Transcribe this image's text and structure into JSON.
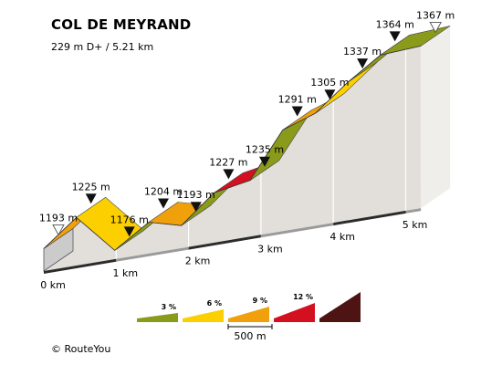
{
  "header": {
    "title": "COL DE MEYRAND",
    "subtitle": "229 m D+ / 5.21 km"
  },
  "footer": {
    "credit": "© RouteYou"
  },
  "colors": {
    "grade_3": "#8a9a1b",
    "grade_6": "#fccf00",
    "grade_9": "#f0a00a",
    "grade_12": "#d31020",
    "grade_max": "#4e1414",
    "wall_light": "#e2dfdb",
    "wall_dark": "#cbcbcb",
    "marker": "#111111"
  },
  "chart_data": {
    "type": "area",
    "title": "COL DE MEYRAND",
    "subtitle": "229 m D+ / 5.21 km",
    "x_unit": "km",
    "y_unit": "m",
    "xlim": [
      0,
      5.21
    ],
    "x_ticks": [
      {
        "value": 0,
        "label": "0 km"
      },
      {
        "value": 1,
        "label": "1 km"
      },
      {
        "value": 2,
        "label": "2 km"
      },
      {
        "value": 3,
        "label": "3 km"
      },
      {
        "value": 4,
        "label": "4 km"
      },
      {
        "value": 5,
        "label": "5 km"
      }
    ],
    "points": [
      {
        "km": 0.0,
        "elev": 1193,
        "label": "1193 m",
        "marker": "start"
      },
      {
        "km": 0.45,
        "elev": 1225,
        "label": "1225 m",
        "marker": "point"
      },
      {
        "km": 0.98,
        "elev": 1176,
        "label": "1176 m",
        "marker": "point"
      },
      {
        "km": 1.45,
        "elev": 1204,
        "label": "1204 m",
        "marker": "point"
      },
      {
        "km": 1.9,
        "elev": 1193,
        "label": "1193 m",
        "marker": "point"
      },
      {
        "km": 2.35,
        "elev": 1227,
        "label": "1227 m",
        "marker": "point"
      },
      {
        "km": 2.85,
        "elev": 1235,
        "label": "1235 m",
        "marker": "point"
      },
      {
        "km": 3.3,
        "elev": 1291,
        "label": "1291 m",
        "marker": "point"
      },
      {
        "km": 3.75,
        "elev": 1305,
        "label": "1305 m",
        "marker": "point"
      },
      {
        "km": 4.2,
        "elev": 1337,
        "label": "1337 m",
        "marker": "point"
      },
      {
        "km": 4.65,
        "elev": 1364,
        "label": "1364 m",
        "marker": "point"
      },
      {
        "km": 5.21,
        "elev": 1367,
        "label": "1367 m",
        "marker": "end"
      }
    ],
    "segment_grades": [
      "grade_9",
      "grade_6",
      "grade_3",
      "grade_9",
      "grade_3",
      "grade_12",
      "grade_3",
      "grade_9",
      "grade_6",
      "grade_3",
      "grade_3"
    ],
    "legend": [
      {
        "label": "3 %",
        "color_key": "grade_3"
      },
      {
        "label": "6 %",
        "color_key": "grade_6"
      },
      {
        "label": "9 %",
        "color_key": "grade_9"
      },
      {
        "label": "12 %",
        "color_key": "grade_12"
      },
      {
        "label": "",
        "color_key": "grade_max"
      }
    ],
    "scale_bar": {
      "label": "500 m",
      "value_m": 500
    }
  }
}
